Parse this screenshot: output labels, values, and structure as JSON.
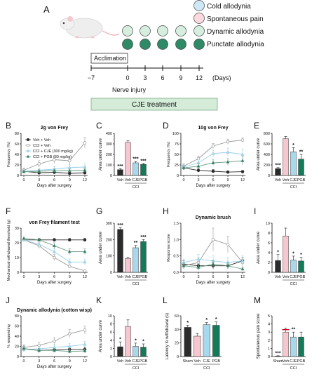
{
  "colors": {
    "veh_black": "#2b2b2b",
    "veh_pink": "#f7c7cf",
    "cje_blue": "#a8d8ee",
    "pgb_green": "#137a5a",
    "green_light": "#d6eedf",
    "cje_box_fill": "#d4ecd8",
    "cje_box_stroke": "#7fae86",
    "error_red": "#d1001f"
  },
  "panelA": {
    "letter": "A",
    "legend": [
      "Cold allodynia",
      "Spontaneous pain",
      "Dynamic allodynia",
      "Punctate allodynia"
    ],
    "acclimation_label": "Acclimation",
    "timeline_ticks": [
      "−7",
      "0",
      "3",
      "6",
      "9",
      "12"
    ],
    "days_label": "(Days)",
    "nerve_injury_label": "Nerve injury",
    "treatment_label": "CJE treatment"
  },
  "line_legend": [
    "Veh + Veh",
    "CCI + Veh",
    "CCI + CJE (300 mg/kg)",
    "CCI + PGB (30 mg/kg)"
  ],
  "chart_data": [
    {
      "panel": "B",
      "type": "line",
      "title": "2g von Frey",
      "xlabel": "Days after surgery",
      "ylabel": "Frequency (%)",
      "x": [
        0,
        3,
        6,
        9,
        12
      ],
      "xlim": [
        0,
        12
      ],
      "ylim": [
        0,
        80
      ],
      "yticks": [
        0,
        20,
        40,
        60,
        80
      ],
      "series": [
        {
          "name": "Veh + Veh",
          "values": [
            8,
            5,
            6,
            4,
            5
          ],
          "err": [
            3,
            2,
            2,
            2,
            2
          ]
        },
        {
          "name": "CCI + Veh",
          "values": [
            10,
            22,
            30,
            28,
            62
          ],
          "err": [
            4,
            6,
            7,
            8,
            10
          ]
        },
        {
          "name": "CCI + CJE (300 mg/kg)",
          "values": [
            8,
            10,
            12,
            15,
            16
          ],
          "err": [
            3,
            4,
            5,
            5,
            6
          ]
        },
        {
          "name": "CCI + PGB (30 mg/kg)",
          "values": [
            7,
            8,
            9,
            9,
            10
          ],
          "err": [
            3,
            3,
            3,
            3,
            4
          ]
        }
      ]
    },
    {
      "panel": "C",
      "type": "bar",
      "ylabel": "Area under curve",
      "categories": [
        "Veh",
        "Veh",
        "CJE",
        "PGB"
      ],
      "group_label": "CCI",
      "values": [
        55,
        315,
        120,
        105
      ],
      "err": [
        10,
        15,
        12,
        10
      ],
      "ylim": [
        0,
        400
      ],
      "yticks": [
        0,
        100,
        200,
        300,
        400
      ],
      "sig": [
        "***",
        "",
        "***",
        "***"
      ]
    },
    {
      "panel": "D",
      "type": "line",
      "title": "10g von  Frey",
      "xlabel": "Days after surgery",
      "ylabel": "Frequency (%)",
      "x": [
        0,
        3,
        6,
        9,
        12
      ],
      "xlim": [
        0,
        12
      ],
      "ylim": [
        0,
        100
      ],
      "yticks": [
        0,
        25,
        50,
        75,
        100
      ],
      "series": [
        {
          "name": "Veh + Veh",
          "values": [
            18,
            12,
            10,
            8,
            9
          ],
          "err": [
            5,
            4,
            4,
            3,
            3
          ]
        },
        {
          "name": "CCI + Veh",
          "values": [
            22,
            40,
            70,
            80,
            84
          ],
          "err": [
            6,
            6,
            6,
            6,
            5
          ]
        },
        {
          "name": "CCI + CJE (300 mg/kg)",
          "values": [
            20,
            30,
            52,
            55,
            50
          ],
          "err": [
            6,
            7,
            8,
            10,
            12
          ]
        },
        {
          "name": "CCI + PGB (30 mg/kg)",
          "values": [
            18,
            22,
            30,
            32,
            35
          ],
          "err": [
            5,
            6,
            7,
            8,
            10
          ]
        }
      ]
    },
    {
      "panel": "E",
      "type": "bar",
      "ylabel": "Area under curve",
      "categories": [
        "Veh",
        "Veh",
        "CJE",
        "PGB"
      ],
      "group_label": "CCI",
      "values": [
        130,
        700,
        450,
        310
      ],
      "err": [
        20,
        40,
        80,
        90
      ],
      "ylim": [
        0,
        800
      ],
      "yticks": [
        0,
        200,
        400,
        600,
        800
      ],
      "sig": [
        "***",
        "",
        "*",
        "**"
      ]
    },
    {
      "panel": "F",
      "type": "line",
      "title": "von Frey filament test",
      "xlabel": "Days after surgery",
      "ylabel": "Mechanical withdrawal threshold (g)",
      "x": [
        0,
        3,
        6,
        9,
        12
      ],
      "xlim": [
        0,
        12
      ],
      "ylim": [
        0,
        30
      ],
      "yticks": [
        0,
        10,
        20,
        30
      ],
      "series": [
        {
          "name": "Veh + Veh",
          "values": [
            22,
            22,
            22,
            22,
            22
          ],
          "err": [
            1,
            1,
            1,
            1,
            1
          ]
        },
        {
          "name": "CCI + Veh",
          "values": [
            22,
            18,
            10,
            4,
            1
          ],
          "err": [
            1,
            2,
            2,
            1,
            0.5
          ]
        },
        {
          "name": "CCI + CJE (300 mg/kg)",
          "values": [
            22,
            19,
            14,
            7,
            7
          ],
          "err": [
            1,
            2,
            2,
            2,
            2
          ]
        },
        {
          "name": "CCI + PGB (30 mg/kg)",
          "values": [
            23,
            22,
            18,
            14,
            14
          ],
          "err": [
            1,
            1,
            2,
            2,
            2
          ]
        }
      ]
    },
    {
      "panel": "G",
      "type": "bar",
      "ylabel": "Area under curve",
      "categories": [
        "Veh",
        "Veh",
        "CJE",
        "PGB"
      ],
      "group_label": "CCI",
      "values": [
        262,
        85,
        150,
        188
      ],
      "err": [
        10,
        6,
        14,
        12
      ],
      "ylim": [
        0,
        300
      ],
      "yticks": [
        0,
        100,
        200,
        300
      ],
      "sig": [
        "***",
        "",
        "**",
        "***"
      ]
    },
    {
      "panel": "H",
      "type": "line",
      "title": "Dynamic brush",
      "xlabel": "Days after surgery",
      "ylabel": "Response score",
      "x": [
        0,
        3,
        6,
        9,
        12
      ],
      "xlim": [
        0,
        12
      ],
      "ylim": [
        0,
        1.5
      ],
      "yticks": [
        0.0,
        0.5,
        1.0,
        1.5
      ],
      "series": [
        {
          "name": "Veh + Veh",
          "values": [
            0.25,
            0.2,
            0.2,
            0.2,
            0.35
          ],
          "err": [
            0.1,
            0.1,
            0.1,
            0.1,
            0.1
          ]
        },
        {
          "name": "CCI + Veh",
          "values": [
            0.2,
            0.3,
            1.0,
            0.85,
            0.3
          ],
          "err": [
            0.1,
            0.15,
            0.35,
            0.25,
            0.15
          ]
        },
        {
          "name": "CCI + CJE (300 mg/kg)",
          "values": [
            0.3,
            0.4,
            0.35,
            0.3,
            0.35
          ],
          "err": [
            0.1,
            0.15,
            0.15,
            0.15,
            0.15
          ]
        },
        {
          "name": "CCI + PGB (30 mg/kg)",
          "values": [
            0.2,
            0.15,
            0.25,
            0.2,
            0.1
          ],
          "err": [
            0.1,
            0.1,
            0.1,
            0.1,
            0.05
          ]
        }
      ]
    },
    {
      "panel": "I",
      "type": "bar",
      "ylabel": "Area under curve",
      "categories": [
        "Veh",
        "Veh",
        "CJE",
        "PGB"
      ],
      "group_label": "CCI",
      "values": [
        2.4,
        7.4,
        2.5,
        2.3
      ],
      "err": [
        1.2,
        1.6,
        0.8,
        0.8
      ],
      "ylim": [
        0,
        10
      ],
      "yticks": [
        0,
        2,
        4,
        6,
        8,
        10
      ],
      "sig": [
        "*",
        "",
        "*",
        "*"
      ]
    },
    {
      "panel": "J",
      "type": "line",
      "title": "Dynamic allodynia (cotton wisp)",
      "xlabel": "Days after surgery",
      "ylabel": "% responding",
      "x": [
        0,
        3,
        6,
        9,
        12
      ],
      "xlim": [
        0,
        12
      ],
      "ylim": [
        0,
        80
      ],
      "yticks": [
        0,
        20,
        40,
        60,
        80
      ],
      "series": [
        {
          "name": "Veh + Veh",
          "values": [
            15,
            12,
            13,
            14,
            14
          ],
          "err": [
            5,
            4,
            4,
            4,
            4
          ]
        },
        {
          "name": "CCI + Veh",
          "values": [
            18,
            22,
            30,
            45,
            52
          ],
          "err": [
            5,
            6,
            7,
            8,
            8
          ]
        },
        {
          "name": "CCI + CJE (300 mg/kg)",
          "values": [
            14,
            15,
            18,
            20,
            24
          ],
          "err": [
            5,
            5,
            5,
            6,
            6
          ]
        },
        {
          "name": "CCI + PGB (30 mg/kg)",
          "values": [
            16,
            12,
            12,
            10,
            11
          ],
          "err": [
            5,
            4,
            4,
            4,
            4
          ]
        }
      ]
    },
    {
      "panel": "K",
      "type": "bar",
      "ylabel": "Area under curve",
      "categories": [
        "Veh",
        "Veh",
        "CJE",
        "PGB"
      ],
      "group_label": "CCI",
      "values": [
        2.4,
        7.4,
        2.5,
        2.3
      ],
      "err": [
        1.2,
        1.6,
        0.8,
        0.8
      ],
      "ylim": [
        0,
        10
      ],
      "yticks": [
        0,
        2,
        4,
        6,
        8,
        10
      ],
      "sig": [
        "*",
        "",
        "*",
        "*"
      ]
    },
    {
      "panel": "L",
      "type": "bar",
      "ylabel": "Latency to withdrawal (s)",
      "categories": [
        "Sham",
        "Veh",
        "CJE",
        "PGB"
      ],
      "group_label": "CCI",
      "values": [
        43,
        30,
        47,
        46
      ],
      "err": [
        3,
        4,
        3,
        5
      ],
      "ylim": [
        0,
        60
      ],
      "yticks": [
        0,
        20,
        40,
        60
      ],
      "sig": [
        "*",
        "",
        "*",
        "*"
      ]
    },
    {
      "panel": "M",
      "type": "bar",
      "ylabel": "Spontaneous pain score",
      "categories": [
        "Sham",
        "Veh",
        "CJE",
        "PGB"
      ],
      "group_label": "CCI",
      "values": [
        0.05,
        3.0,
        2.4,
        2.4
      ],
      "err": [
        0.05,
        0.5,
        0.6,
        0.6
      ],
      "ylim": [
        0,
        5
      ],
      "yticks": [
        0,
        1,
        2,
        3,
        4,
        5
      ],
      "sig": [
        "***",
        "",
        "**",
        ""
      ]
    }
  ]
}
